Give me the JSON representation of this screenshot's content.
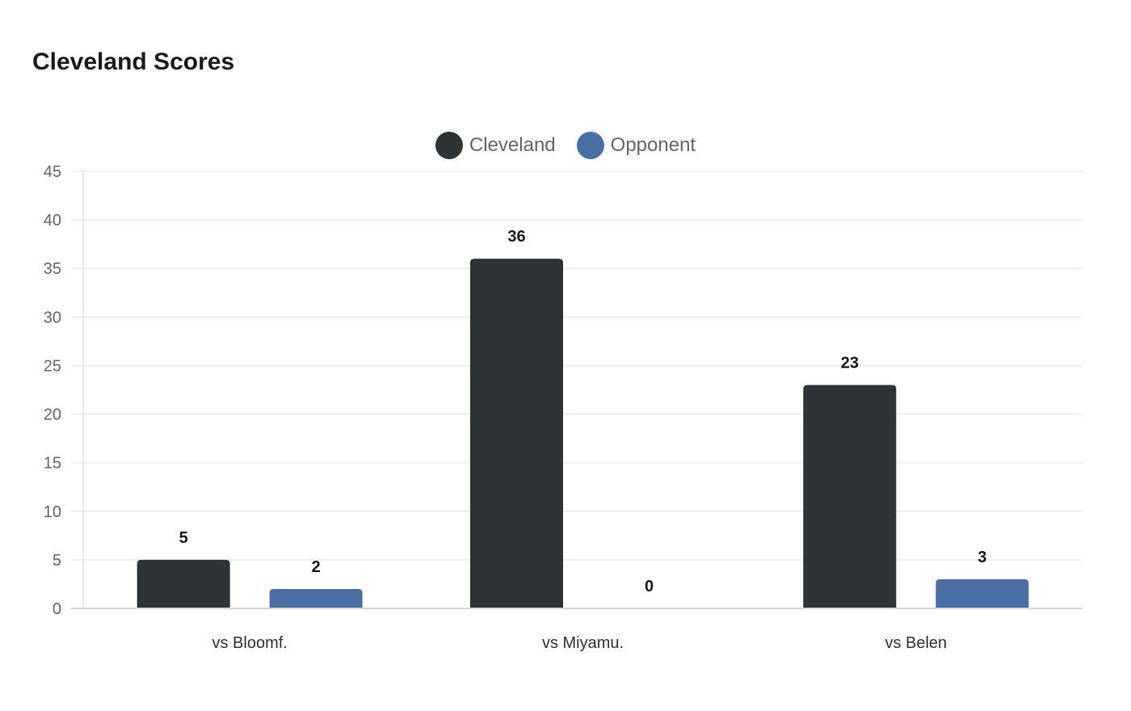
{
  "title": "Cleveland Scores",
  "legend": [
    {
      "label": "Cleveland",
      "color": "#2d3436"
    },
    {
      "label": "Opponent",
      "color": "#4a6fa5"
    }
  ],
  "chart_data": {
    "type": "bar",
    "title": "Cleveland Scores",
    "categories": [
      "vs Bloomf.",
      "vs Miyamu.",
      "vs Belen"
    ],
    "series": [
      {
        "name": "Cleveland",
        "color": "#2d3436",
        "values": [
          5,
          36,
          23
        ]
      },
      {
        "name": "Opponent",
        "color": "#4a6fa5",
        "values": [
          2,
          0,
          3
        ]
      }
    ],
    "xlabel": "",
    "ylabel": "",
    "ylim": [
      0,
      45
    ],
    "yticks": [
      0,
      5,
      10,
      15,
      20,
      25,
      30,
      35,
      40,
      45
    ],
    "grid": true,
    "legend_position": "top",
    "data_labels": true
  }
}
